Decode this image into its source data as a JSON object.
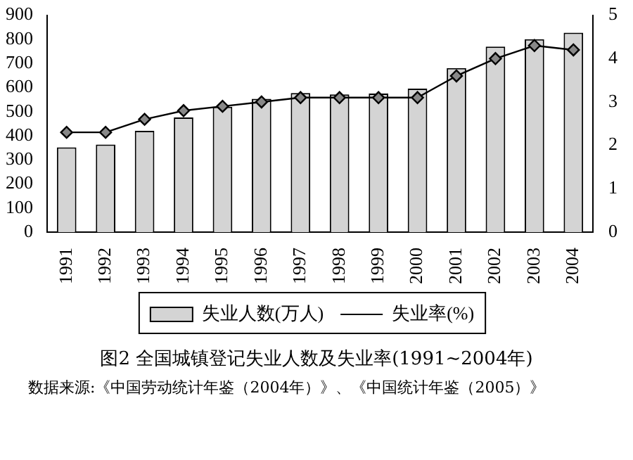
{
  "chart_data": {
    "type": "bar",
    "title": "图2 全国城镇登记失业人数及失业率(1991~2004年)",
    "annotations": [
      "数据来源:《中国劳动统计年鉴（2004年）》、《中国统计年鉴（2005）》"
    ],
    "categories": [
      "1991",
      "1992",
      "1993",
      "1994",
      "1995",
      "1996",
      "1997",
      "1998",
      "1999",
      "2000",
      "2001",
      "2002",
      "2003",
      "2004"
    ],
    "series": [
      {
        "name": "失业人数(万人)",
        "type": "bar",
        "color": "#d4d4d4",
        "values": [
          352,
          363,
          420,
          476,
          520,
          553,
          577,
          571,
          575,
          595,
          681,
          770,
          800,
          827
        ]
      },
      {
        "name": "失业率(%)",
        "type": "line",
        "axis": "y2",
        "color": "#000000",
        "values": [
          2.3,
          2.3,
          2.6,
          2.8,
          2.9,
          3.0,
          3.1,
          3.1,
          3.1,
          3.1,
          3.6,
          4.0,
          4.3,
          4.2
        ]
      }
    ],
    "ylim": [
      0,
      900
    ],
    "yticks": [
      0,
      100,
      200,
      300,
      400,
      500,
      600,
      700,
      800,
      900
    ],
    "y2lim": [
      0,
      5
    ],
    "y2ticks": [
      0,
      1,
      2,
      3,
      4,
      5
    ],
    "grid": false,
    "legend": "bottom",
    "marker": "diamond"
  }
}
